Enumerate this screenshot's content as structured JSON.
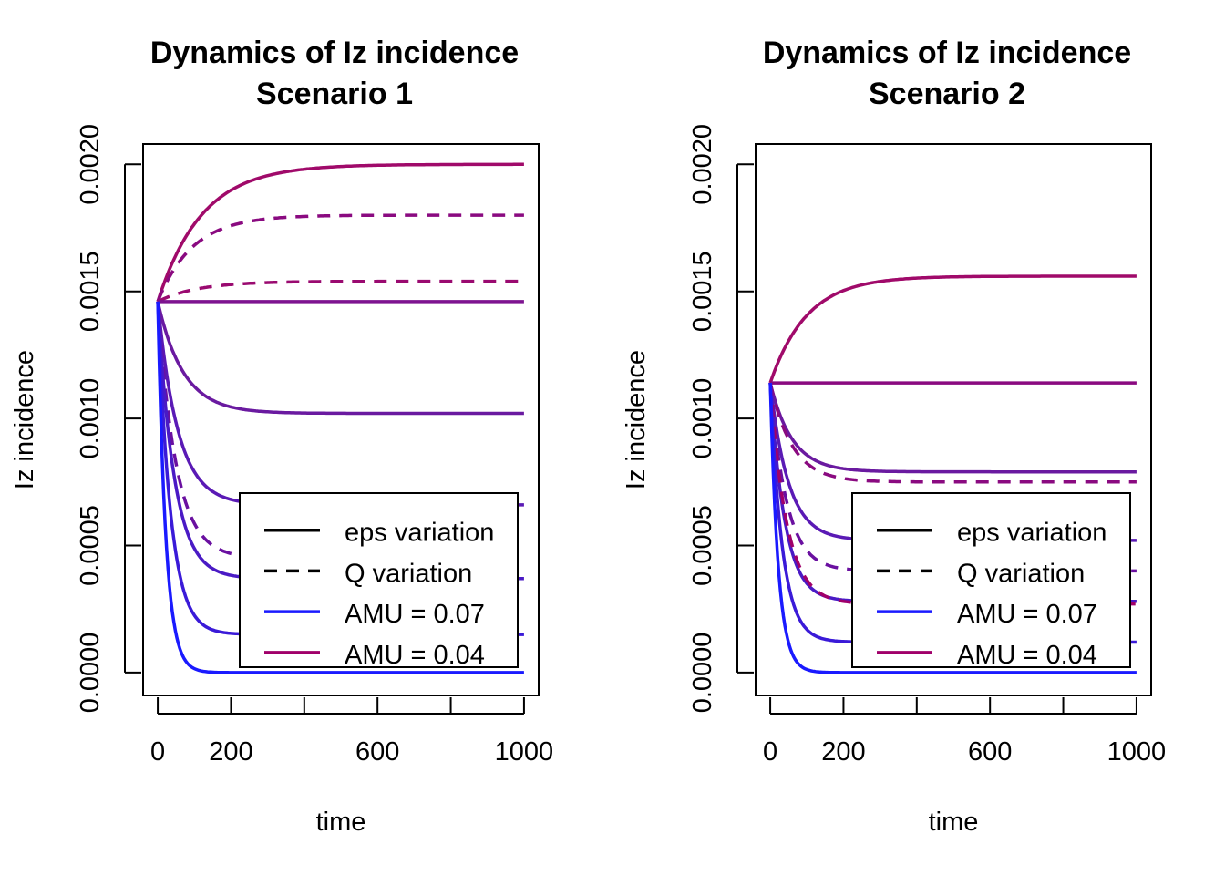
{
  "chart_data": [
    {
      "type": "line",
      "title_line1": "Dynamics of Iz incidence",
      "title_line2": "Scenario 1",
      "xlabel": "time",
      "ylabel": "Iz incidence",
      "xlim": [
        -40,
        1040
      ],
      "ylim": [
        -9e-05,
        0.00208
      ],
      "x_ticks": [
        0,
        200,
        400,
        600,
        800,
        1000
      ],
      "x_tick_labels": [
        "0",
        "200",
        "",
        "600",
        "",
        "1000"
      ],
      "y_ticks": [
        0,
        0.0005,
        0.001,
        0.0015,
        0.002
      ],
      "y_tick_labels": [
        "0.0000",
        "0.0005",
        "0.0010",
        "0.0015",
        "0.0020"
      ],
      "legend": {
        "position": "bottom-right",
        "entries": [
          {
            "label": "eps variation",
            "style": "solid",
            "color": "#000000"
          },
          {
            "label": "Q variation",
            "style": "dashed",
            "color": "#000000"
          },
          {
            "label": "AMU = 0.07",
            "style": "solid",
            "color": "#1a1aff"
          },
          {
            "label": "AMU = 0.04",
            "style": "solid",
            "color": "#a0006a"
          }
        ]
      },
      "series": [
        {
          "start": 0.00146,
          "end": 0.002,
          "tau": 120,
          "dash": false,
          "color": "#a00a6a"
        },
        {
          "start": 0.00146,
          "end": 0.0018,
          "tau": 95,
          "dash": true,
          "color": "#8a0a80"
        },
        {
          "start": 0.00146,
          "end": 0.00154,
          "tau": 110,
          "dash": true,
          "color": "#9a0a70"
        },
        {
          "start": 0.00146,
          "end": 0.00146,
          "tau": 100,
          "dash": false,
          "color": "#7e1490"
        },
        {
          "start": 0.00146,
          "end": 0.00102,
          "tau": 70,
          "dash": false,
          "color": "#6a1aa0"
        },
        {
          "start": 0.00146,
          "end": 0.00066,
          "tau": 55,
          "dash": false,
          "color": "#5a1ab5"
        },
        {
          "start": 0.00146,
          "end": 0.00045,
          "tau": 50,
          "dash": true,
          "color": "#6a10a0"
        },
        {
          "start": 0.00146,
          "end": 0.00037,
          "tau": 45,
          "dash": false,
          "color": "#4a1ac5"
        },
        {
          "start": 0.00146,
          "end": 0.00015,
          "tau": 35,
          "dash": false,
          "color": "#3a1ad8"
        },
        {
          "start": 0.00146,
          "end": 0.0,
          "tau": 22,
          "dash": false,
          "color": "#1a1aff"
        }
      ]
    },
    {
      "type": "line",
      "title_line1": "Dynamics of Iz incidence",
      "title_line2": "Scenario 2",
      "xlabel": "time",
      "ylabel": "Iz incidence",
      "xlim": [
        -40,
        1040
      ],
      "ylim": [
        -9e-05,
        0.00208
      ],
      "x_ticks": [
        0,
        200,
        400,
        600,
        800,
        1000
      ],
      "x_tick_labels": [
        "0",
        "200",
        "",
        "600",
        "",
        "1000"
      ],
      "y_ticks": [
        0,
        0.0005,
        0.001,
        0.0015,
        0.002
      ],
      "y_tick_labels": [
        "0.0000",
        "0.0005",
        "0.0010",
        "0.0015",
        "0.0020"
      ],
      "legend": {
        "position": "bottom-right",
        "entries": [
          {
            "label": "eps variation",
            "style": "solid",
            "color": "#000000"
          },
          {
            "label": "Q variation",
            "style": "dashed",
            "color": "#000000"
          },
          {
            "label": "AMU = 0.07",
            "style": "solid",
            "color": "#1a1aff"
          },
          {
            "label": "AMU = 0.04",
            "style": "solid",
            "color": "#a0006a"
          }
        ]
      },
      "series": [
        {
          "start": 0.00114,
          "end": 0.00156,
          "tau": 100,
          "dash": false,
          "color": "#a00a6a"
        },
        {
          "start": 0.00114,
          "end": 0.00114,
          "tau": 100,
          "dash": false,
          "color": "#8a0a80"
        },
        {
          "start": 0.00114,
          "end": 0.00079,
          "tau": 60,
          "dash": false,
          "color": "#6a1aa0"
        },
        {
          "start": 0.00114,
          "end": 0.00075,
          "tau": 60,
          "dash": true,
          "color": "#8a0a80"
        },
        {
          "start": 0.00114,
          "end": 0.00052,
          "tau": 50,
          "dash": false,
          "color": "#5a1ab5"
        },
        {
          "start": 0.00114,
          "end": 0.0004,
          "tau": 45,
          "dash": true,
          "color": "#6a10a0"
        },
        {
          "start": 0.00114,
          "end": 0.00028,
          "tau": 40,
          "dash": false,
          "color": "#4a1ac5"
        },
        {
          "start": 0.00114,
          "end": 0.00027,
          "tau": 45,
          "dash": true,
          "color": "#a0006a"
        },
        {
          "start": 0.00114,
          "end": 0.00012,
          "tau": 33,
          "dash": false,
          "color": "#3a1ad8"
        },
        {
          "start": 0.00114,
          "end": 0.0,
          "tau": 22,
          "dash": false,
          "color": "#1a1aff"
        }
      ]
    }
  ]
}
